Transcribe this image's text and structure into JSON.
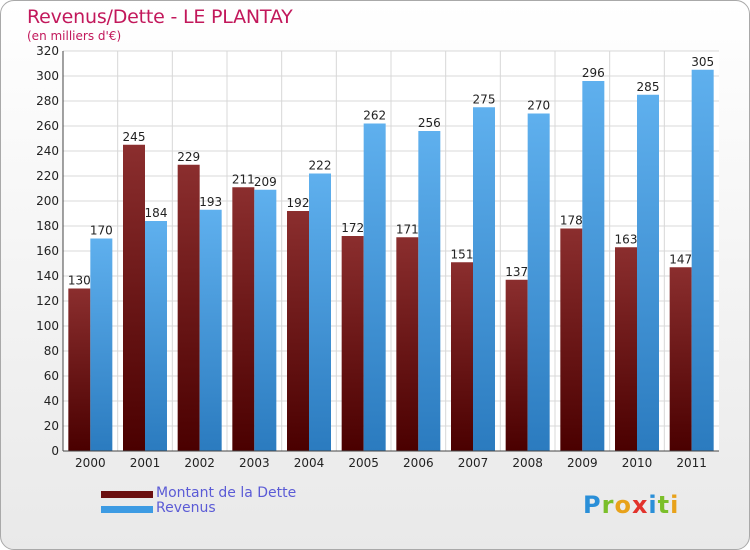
{
  "header": {
    "title": "Revenus/Dette - LE PLANTAY",
    "subtitle": "(en milliers d'€)"
  },
  "chart_data": {
    "type": "bar",
    "categories": [
      "2000",
      "2001",
      "2002",
      "2003",
      "2004",
      "2005",
      "2006",
      "2007",
      "2008",
      "2009",
      "2010",
      "2011"
    ],
    "series": [
      {
        "name": "Montant de la Dette",
        "color": "#7a1a1a",
        "values": [
          130,
          245,
          229,
          211,
          192,
          172,
          171,
          151,
          137,
          178,
          163,
          147
        ]
      },
      {
        "name": "Revenus",
        "color": "#4aa3e8",
        "values": [
          170,
          184,
          193,
          209,
          222,
          262,
          256,
          275,
          270,
          296,
          285,
          305
        ]
      }
    ],
    "ylim": [
      0,
      320
    ],
    "yticks": [
      0,
      20,
      40,
      60,
      80,
      100,
      120,
      140,
      160,
      180,
      200,
      220,
      240,
      260,
      280,
      300,
      320
    ],
    "grid": true,
    "legend": "bottom-left"
  },
  "logo": {
    "text": "Proxiti"
  }
}
